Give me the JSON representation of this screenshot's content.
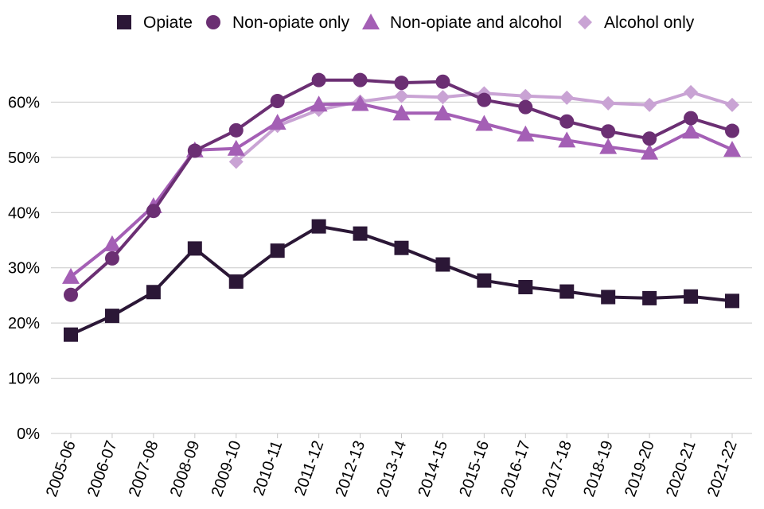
{
  "chart_data": {
    "type": "line",
    "categories": [
      "2005-06",
      "2006-07",
      "2007-08",
      "2008-09",
      "2009-10",
      "2010-11",
      "2011-12",
      "2012-13",
      "2013-14",
      "2014-15",
      "2015-16",
      "2016-17",
      "2017-18",
      "2018-19",
      "2019-20",
      "2020-21",
      "2021-22"
    ],
    "ylim": [
      0,
      0.7
    ],
    "yticks": [
      0,
      0.1,
      0.2,
      0.3,
      0.4,
      0.5,
      0.6
    ],
    "ytick_labels": [
      "0%",
      "10%",
      "20%",
      "30%",
      "40%",
      "50%",
      "60%"
    ],
    "grid": "horizontal",
    "legend_position": "top",
    "series": [
      {
        "name": "Opiate",
        "marker": "square",
        "color": "#2b1736",
        "values": [
          0.179,
          0.213,
          0.256,
          0.335,
          0.275,
          0.331,
          0.375,
          0.362,
          0.336,
          0.306,
          0.277,
          0.265,
          0.257,
          0.247,
          0.245,
          0.248,
          0.24
        ]
      },
      {
        "name": "Non-opiate only",
        "marker": "circle",
        "color": "#6b2f73",
        "values": [
          0.251,
          0.317,
          0.403,
          0.512,
          0.549,
          0.602,
          0.64,
          0.64,
          0.635,
          0.637,
          0.604,
          0.591,
          0.565,
          0.547,
          0.534,
          0.571,
          0.548
        ]
      },
      {
        "name": "Non-opiate and alcohol",
        "marker": "triangle",
        "color": "#a45fb5",
        "values": [
          0.284,
          0.343,
          0.412,
          0.513,
          0.516,
          0.563,
          0.596,
          0.597,
          0.58,
          0.58,
          0.561,
          0.542,
          0.531,
          0.519,
          0.509,
          0.547,
          0.514
        ]
      },
      {
        "name": "Alcohol only",
        "marker": "diamond",
        "color": "#c9a3d4",
        "values": [
          null,
          null,
          null,
          null,
          0.492,
          0.557,
          0.586,
          0.601,
          0.611,
          0.609,
          0.616,
          0.611,
          0.608,
          0.598,
          0.595,
          0.618,
          0.595
        ]
      }
    ]
  }
}
